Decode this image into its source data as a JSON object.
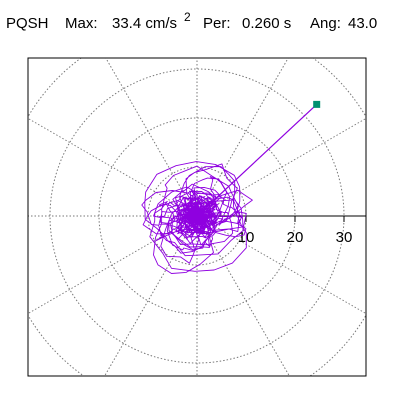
{
  "header": {
    "station": "PQSH",
    "max_label": "Max:",
    "max_value": "33.4 cm/s",
    "max_exponent": "2",
    "per_label": "Per:",
    "per_value": "0.260 s",
    "ang_label": "Ang:",
    "ang_value": "43.0"
  },
  "chart_data": {
    "type": "scatter",
    "subtype": "polar-particle-motion",
    "radial_ticks": [
      10,
      20,
      30
    ],
    "radial_tick_labels": [
      "10",
      "20",
      "30"
    ],
    "rings": [
      10,
      20,
      30,
      40
    ],
    "spokes_deg": [
      0,
      30,
      60,
      90,
      120,
      150,
      180,
      210,
      240,
      270,
      300,
      330
    ],
    "max_amplitude": 33.4,
    "max_angle_deg": 43.0,
    "trace_color": "#8f00e0",
    "marker_color": "#009070",
    "grid_style": "dotted",
    "grid_color": "#777777"
  }
}
